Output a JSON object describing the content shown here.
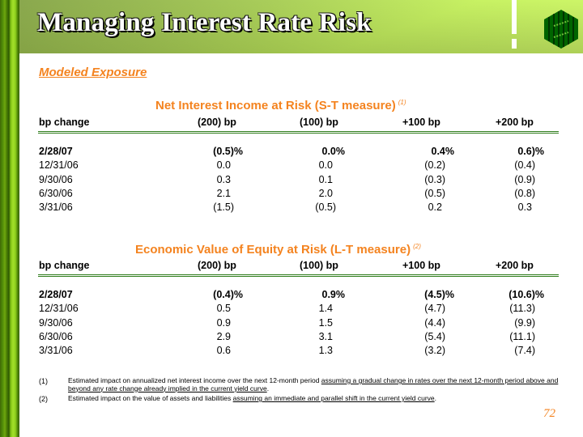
{
  "header": {
    "title": "Managing Interest Rate Risk",
    "logo_icon": "bank-logo-icon"
  },
  "subtitle": "Modeled Exposure",
  "colors": {
    "accent": "#f4831f",
    "rule": "#2f7d1c",
    "logo": "#006400"
  },
  "tables": [
    {
      "title": "Net Interest Income at Risk (S-T measure)",
      "footnote_ref": "(1)",
      "columns": [
        "bp change",
        "(200) bp",
        "(100) bp",
        "+100 bp",
        "+200 bp"
      ],
      "rows": [
        {
          "date": "2/28/07",
          "values": [
            "(0.5)%",
            "0.0%",
            "0.4%",
            "0.6)%"
          ],
          "bold": true
        },
        {
          "date": "12/31/06",
          "values": [
            "0.0",
            "0.0",
            "(0.2)",
            "(0.4)"
          ],
          "bold": false
        },
        {
          "date": "9/30/06",
          "values": [
            "0.3",
            "0.1",
            "(0.3)",
            "(0.9)"
          ],
          "bold": false
        },
        {
          "date": "6/30/06",
          "values": [
            "2.1",
            "2.0",
            "(0.5)",
            "(0.8)"
          ],
          "bold": false
        },
        {
          "date": "3/31/06",
          "values": [
            "(1.5)",
            "(0.5)",
            "0.2",
            "0.3"
          ],
          "bold": false
        }
      ]
    },
    {
      "title": "Economic Value of Equity at Risk (L-T measure)",
      "footnote_ref": "(2)",
      "columns": [
        "bp change",
        "(200) bp",
        "(100) bp",
        "+100 bp",
        "+200 bp"
      ],
      "rows": [
        {
          "date": "2/28/07",
          "values": [
            "(0.4)%",
            "0.9%",
            "(4.5)%",
            "(10.6)%"
          ],
          "bold": true
        },
        {
          "date": "12/31/06",
          "values": [
            "0.5",
            "1.4",
            "(4.7)",
            "(11.3)"
          ],
          "bold": false
        },
        {
          "date": "9/30/06",
          "values": [
            "0.9",
            "1.5",
            "(4.4)",
            "(9.9)"
          ],
          "bold": false
        },
        {
          "date": "6/30/06",
          "values": [
            "2.9",
            "3.1",
            "(5.4)",
            "(11.1)"
          ],
          "bold": false
        },
        {
          "date": "3/31/06",
          "values": [
            "0.6",
            "1.3",
            "(3.2)",
            "(7.4)"
          ],
          "bold": false
        }
      ]
    }
  ],
  "footnotes": [
    {
      "mark": "(1)",
      "text_plain": "Estimated impact on annualized net interest income over the next 12-month period ",
      "text_underlined": "assuming a gradual change in rates over the next 12-month period above and beyond any rate change already implied in the current yield curve",
      "text_end": "."
    },
    {
      "mark": "(2)",
      "text_plain": "Estimated impact on the value of assets and liabilities ",
      "text_underlined": "assuming an immediate and parallel shift in the current yield curve",
      "text_end": "."
    }
  ],
  "page_number": "72"
}
